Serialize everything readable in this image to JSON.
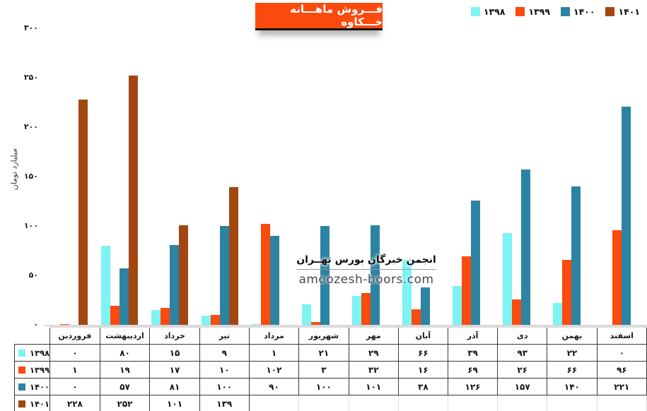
{
  "title": "فـــروش ماهـــانه خـــکاوه",
  "watermark": {
    "org": "انجمن خبرگان بورس تهــران",
    "site": "amoozesh-boors.com"
  },
  "colors": {
    "accent_orange": "#FB4A0E",
    "series_1398": "#7DF3F2",
    "series_1399": "#FB4A0E",
    "series_1400": "#2D83A2",
    "series_1401": "#A34712",
    "axis_gray": "#D9D9D9",
    "table_border_dark": "#3a3a3a",
    "table_border_light": "#dcdcdc"
  },
  "y_axis": {
    "title": "میلیارد تومان",
    "ticks": [
      {
        "label": "۳۰۰",
        "value": 300
      },
      {
        "label": "۲۵۰",
        "value": 250
      },
      {
        "label": "۲۰۰",
        "value": 200
      },
      {
        "label": "۱۵۰",
        "value": 150
      },
      {
        "label": "۱۰۰",
        "value": 100
      },
      {
        "label": "۵۰",
        "value": 50
      },
      {
        "label": "۰",
        "value": 0
      }
    ]
  },
  "legend": {
    "items": [
      {
        "id": "1398",
        "label": "۱۳۹۸",
        "color": "#7DF3F2"
      },
      {
        "id": "1399",
        "label": "۱۳۹۹",
        "color": "#FB4A0E"
      },
      {
        "id": "1400",
        "label": "۱۴۰۰",
        "color": "#2D83A2"
      },
      {
        "id": "1401",
        "label": "۱۴۰۱",
        "color": "#A34712"
      }
    ]
  },
  "chart_data": {
    "type": "bar",
    "title": "فـــروش ماهـــانه خـــکاوه",
    "categories": [
      "فروردین",
      "اردیبهشت",
      "خرداد",
      "تیر",
      "مرداد",
      "شهریور",
      "مهر",
      "آبان",
      "آذر",
      "دی",
      "بهمن",
      "اسفند"
    ],
    "series": [
      {
        "name": "۱۳۹۸",
        "color": "#7DF3F2",
        "values": [
          0,
          80,
          15,
          9,
          1,
          21,
          29,
          66,
          39,
          93,
          22,
          0
        ]
      },
      {
        "name": "۱۳۹۹",
        "color": "#FB4A0E",
        "values": [
          1,
          19,
          17,
          10,
          102,
          3,
          32,
          16,
          69,
          26,
          66,
          96
        ]
      },
      {
        "name": "۱۴۰۰",
        "color": "#2D83A2",
        "values": [
          0,
          57,
          81,
          100,
          90,
          100,
          101,
          38,
          126,
          157,
          140,
          221
        ]
      },
      {
        "name": "۱۴۰۱",
        "color": "#A34712",
        "values": [
          228,
          252,
          101,
          139,
          null,
          null,
          null,
          null,
          null,
          null,
          null,
          null
        ]
      }
    ],
    "xlabel": "",
    "ylabel": "میلیارد تومان",
    "ylim": [
      0,
      300
    ],
    "y_tick_step": 50,
    "grid": false,
    "legend_position": "top-right",
    "data_table_shown": true
  },
  "table": {
    "columns": [
      "فروردین",
      "اردیبهشت",
      "خرداد",
      "تیر",
      "مرداد",
      "شهریور",
      "مهر",
      "آبان",
      "آذر",
      "دی",
      "بهمن",
      "اسفند"
    ],
    "rows": [
      {
        "year": "۱۳۹۸",
        "color": "#7DF3F2",
        "cells": [
          "۰",
          "۸۰",
          "۱۵",
          "۹",
          "۱",
          "۲۱",
          "۲۹",
          "۶۶",
          "۳۹",
          "۹۳",
          "۲۲",
          "۰"
        ]
      },
      {
        "year": "۱۳۹۹",
        "color": "#FB4A0E",
        "cells": [
          "۱",
          "۱۹",
          "۱۷",
          "۱۰",
          "۱۰۲",
          "۳",
          "۳۲",
          "۱۶",
          "۶۹",
          "۲۶",
          "۶۶",
          "۹۶"
        ]
      },
      {
        "year": "۱۴۰۰",
        "color": "#2D83A2",
        "cells": [
          "۰",
          "۵۷",
          "۸۱",
          "۱۰۰",
          "۹۰",
          "۱۰۰",
          "۱۰۱",
          "۳۸",
          "۱۲۶",
          "۱۵۷",
          "۱۴۰",
          "۲۲۱"
        ]
      },
      {
        "year": "۱۴۰۱",
        "color": "#A34712",
        "cells": [
          "۲۲۸",
          "۲۵۲",
          "۱۰۱",
          "۱۳۹",
          "",
          "",
          "",
          "",
          "",
          "",
          "",
          ""
        ]
      }
    ]
  }
}
